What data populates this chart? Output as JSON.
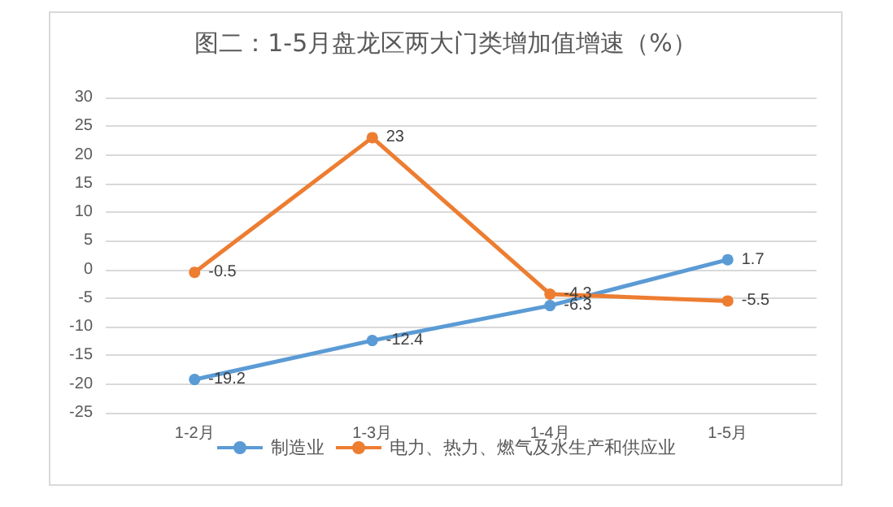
{
  "chart_data": {
    "type": "line",
    "title": "图二：1-5月盘龙区两大门类增加值增速（%）",
    "categories": [
      "1-2月",
      "1-3月",
      "1-4月",
      "1-5月"
    ],
    "series": [
      {
        "name": "制造业",
        "color": "#5b9bd5",
        "values": [
          -19.2,
          -12.4,
          -6.3,
          1.7
        ]
      },
      {
        "name": "电力、热力、燃气及水生产和供应业",
        "color": "#ed7d31",
        "values": [
          -0.5,
          23,
          -4.3,
          -5.5
        ]
      }
    ],
    "ylim": [
      -25,
      30
    ],
    "yticks": [
      -25,
      -20,
      -15,
      -10,
      -5,
      0,
      5,
      10,
      15,
      20,
      25,
      30
    ],
    "grid": "y",
    "legend": "bottom",
    "marker": "circle",
    "data_labels": true
  }
}
